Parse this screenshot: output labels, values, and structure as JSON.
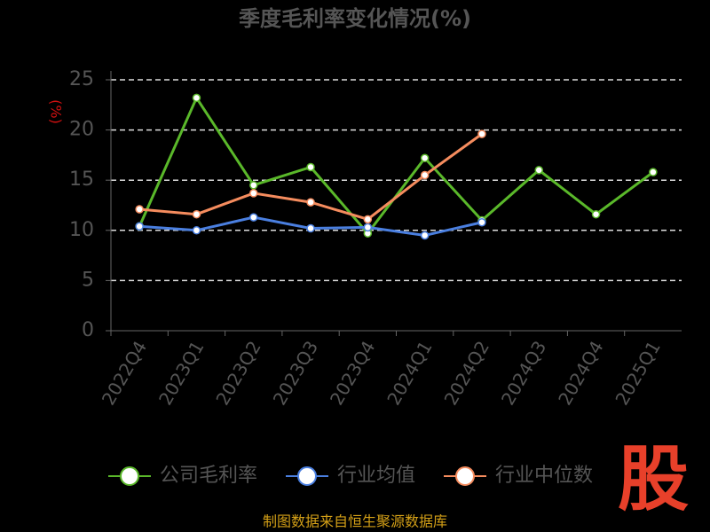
{
  "chart_data": {
    "type": "line",
    "title": "季度毛利率变化情况(%)",
    "y_label": "(%)",
    "categories": [
      "2022Q4",
      "2023Q1",
      "2023Q2",
      "2023Q3",
      "2023Q4",
      "2024Q1",
      "2024Q2",
      "2024Q3",
      "2024Q4",
      "2025Q1"
    ],
    "series": [
      {
        "name": "公司毛利率",
        "color": "#5ab82a",
        "values": [
          10.4,
          23.2,
          14.5,
          16.3,
          9.7,
          17.2,
          11.0,
          16.0,
          11.6,
          15.8
        ]
      },
      {
        "name": "行业均值",
        "color": "#4a7fe0",
        "values": [
          10.4,
          10.0,
          11.3,
          10.2,
          10.3,
          9.5,
          10.8,
          null,
          null,
          null
        ]
      },
      {
        "name": "行业中位数",
        "color": "#f58c5e",
        "values": [
          12.1,
          11.6,
          13.7,
          12.8,
          11.1,
          15.5,
          19.6,
          null,
          null,
          null
        ]
      }
    ],
    "ylim": [
      0,
      25
    ],
    "yticks": [
      0,
      5,
      10,
      15,
      20,
      25
    ],
    "grid": true,
    "legend": "bottom",
    "source": "制图数据来自恒生聚源数据库",
    "logo": "股"
  }
}
